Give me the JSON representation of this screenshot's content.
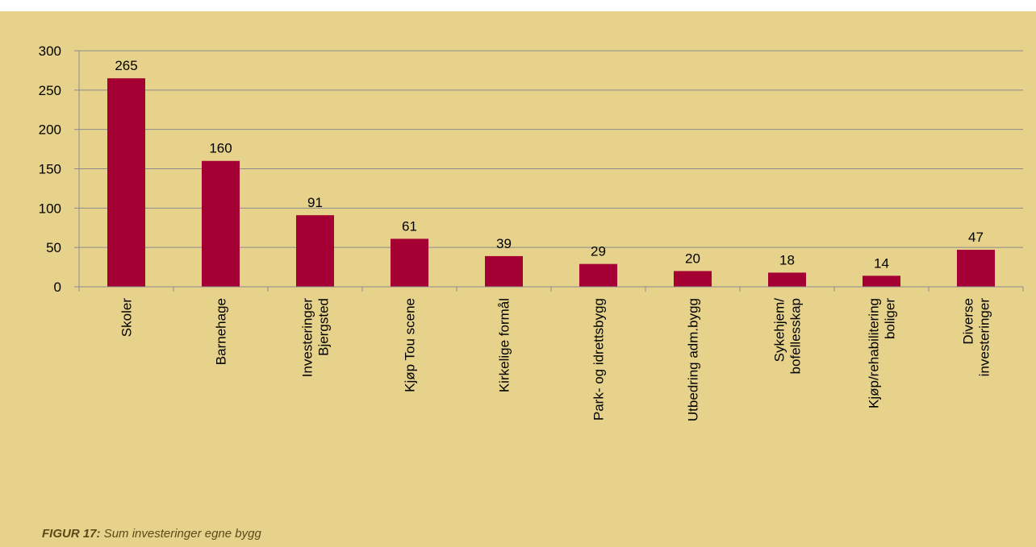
{
  "chart_data": {
    "type": "bar",
    "categories": [
      "Skoler",
      "Barnehage",
      "Investeringer\nBjergsted",
      "Kjøp Tou scene",
      "Kirkelige formål",
      "Park- og idrettsbygg",
      "Utbedring adm.bygg",
      "Sykehjem/\nbofellesskap",
      "Kjøp/rehabilitering\nboliger",
      "Diverse\ninvesteringer"
    ],
    "values": [
      265,
      160,
      91,
      61,
      39,
      29,
      20,
      18,
      14,
      47
    ],
    "color": "#a50034",
    "ylim": [
      0,
      300
    ],
    "yticks": [
      0,
      50,
      100,
      150,
      200,
      250,
      300
    ],
    "grid": true,
    "caption": {
      "label": "FIGUR 17:",
      "text": " Sum investeringer egne bygg"
    }
  }
}
